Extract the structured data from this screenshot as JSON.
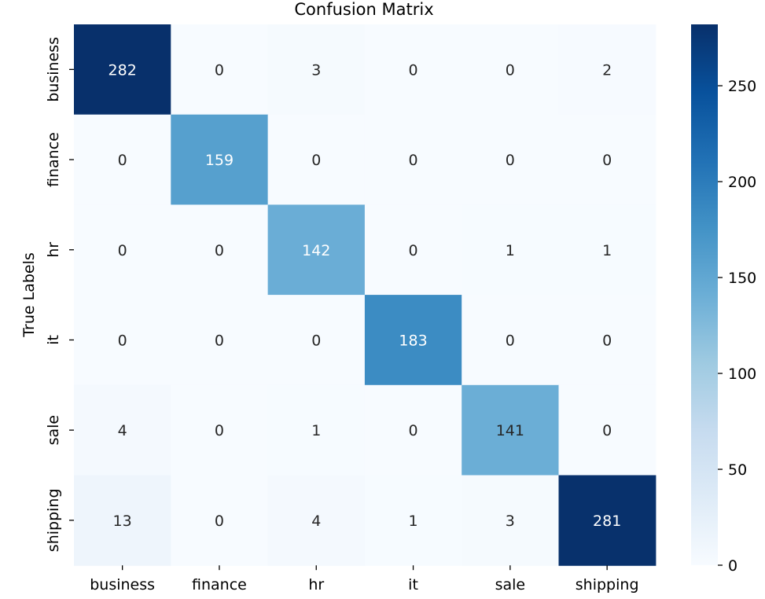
{
  "chart_data": {
    "type": "heatmap",
    "title": "Confusion Matrix",
    "xlabel": "",
    "ylabel": "True Labels",
    "x_categories": [
      "business",
      "finance",
      "hr",
      "it",
      "sale",
      "shipping"
    ],
    "y_categories": [
      "business",
      "finance",
      "hr",
      "it",
      "sale",
      "shipping"
    ],
    "values": [
      [
        282,
        0,
        3,
        0,
        0,
        2
      ],
      [
        0,
        159,
        0,
        0,
        0,
        0
      ],
      [
        0,
        0,
        142,
        0,
        1,
        1
      ],
      [
        0,
        0,
        0,
        183,
        0,
        0
      ],
      [
        4,
        0,
        1,
        0,
        141,
        0
      ],
      [
        13,
        0,
        4,
        1,
        3,
        281
      ]
    ],
    "colormap": "Blues",
    "color_range": [
      0,
      282
    ],
    "colorbar_ticks": [
      0,
      50,
      100,
      150,
      200,
      250
    ],
    "annotations_shown": true,
    "grid": false,
    "colorbar_position": "right"
  }
}
